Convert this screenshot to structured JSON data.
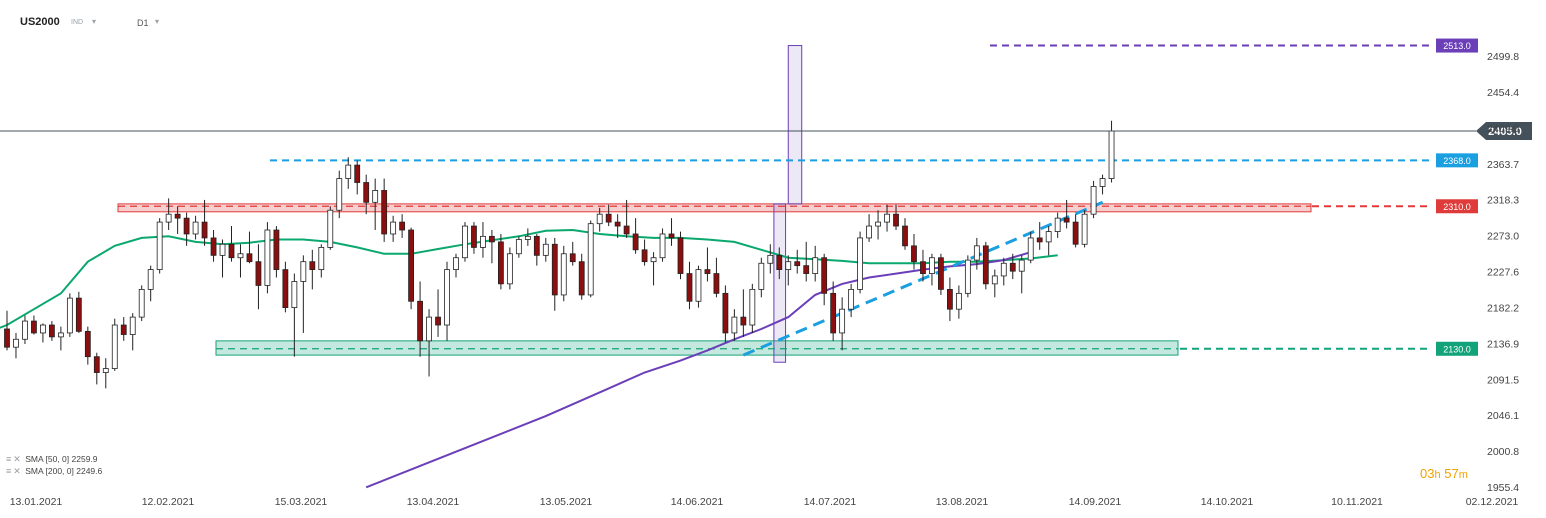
{
  "header": {
    "symbol": "US2000",
    "symbol_tag": "IND",
    "timeframe": "D1",
    "chevron": "▾"
  },
  "legend": [
    {
      "label": "SMA",
      "params": "[50, 0]",
      "value": "2259.9",
      "color": "#0aa86e"
    },
    {
      "label": "SMA",
      "params": "[200, 0]",
      "value": "2249.6",
      "color": "#6a3fb8"
    }
  ],
  "timer": {
    "hours": "03",
    "h": "h",
    "minutes": "57",
    "m": "m"
  },
  "icons": {
    "indicator": "≡",
    "remove": "✕"
  },
  "chart_data": {
    "type": "candlestick",
    "instrument": "US2000",
    "timeframe": "D1",
    "y_ticks": [
      "2499.8",
      "2454.4",
      "2409.0",
      "2363.7",
      "2318.3",
      "2273.0",
      "2227.6",
      "2182.2",
      "2136.9",
      "2091.5",
      "2046.1",
      "2000.8",
      "1955.4"
    ],
    "y_range": [
      1955.4,
      2533
    ],
    "x_labels": [
      "13.01.2021",
      "12.02.2021",
      "15.03.2021",
      "13.04.2021",
      "13.05.2021",
      "14.06.2021",
      "14.07.2021",
      "13.08.2021",
      "14.09.2021",
      "14.10.2021",
      "10.11.2021",
      "02.12.2021"
    ],
    "current_price": {
      "label": "2405.0",
      "value": 2405.0,
      "color": "#44505a"
    },
    "levels": [
      {
        "label": "2513.0",
        "value": 2513.0,
        "color": "#6a3fb8",
        "style": "dashed"
      },
      {
        "label": "2368.0",
        "value": 2368.0,
        "color": "#1a9fe0",
        "style": "dashed"
      },
      {
        "label": "2310.0",
        "value": 2310.0,
        "color": "#e03b3b",
        "style": "dashed"
      },
      {
        "label": "2130.0",
        "value": 2130.0,
        "color": "#13a37a",
        "style": "dashed"
      }
    ],
    "zones": [
      {
        "name": "resistance-zone",
        "low": 2303,
        "high": 2313,
        "color": "#e03b3b"
      },
      {
        "name": "support-zone",
        "low": 2122,
        "high": 2140,
        "color": "#13a37a"
      }
    ],
    "series": [
      {
        "name": "SMA [50, 0]",
        "color": "#0aa86e",
        "points": [
          [
            -24,
            2030
          ],
          [
            -16,
            2075
          ],
          [
            -8,
            2125
          ],
          [
            0,
            2160
          ],
          [
            3,
            2180
          ],
          [
            6,
            2200
          ],
          [
            9,
            2240
          ],
          [
            12,
            2260
          ],
          [
            15,
            2270
          ],
          [
            18,
            2272
          ],
          [
            21,
            2265
          ],
          [
            24,
            2262
          ],
          [
            27,
            2264
          ],
          [
            30,
            2268
          ],
          [
            33,
            2268
          ],
          [
            36,
            2265
          ],
          [
            39,
            2258
          ],
          [
            42,
            2250
          ],
          [
            45,
            2250
          ],
          [
            48,
            2256
          ],
          [
            51,
            2262
          ],
          [
            54,
            2267
          ],
          [
            57,
            2272
          ],
          [
            60,
            2279
          ],
          [
            63,
            2280
          ],
          [
            66,
            2275
          ],
          [
            69,
            2272
          ],
          [
            72,
            2270
          ],
          [
            75,
            2270
          ],
          [
            78,
            2268
          ],
          [
            81,
            2265
          ],
          [
            84,
            2255
          ],
          [
            87,
            2245
          ],
          [
            90,
            2243
          ],
          [
            93,
            2241
          ],
          [
            96,
            2238
          ],
          [
            99,
            2238
          ],
          [
            102,
            2238
          ],
          [
            105,
            2240
          ],
          [
            108,
            2240
          ],
          [
            111,
            2242
          ],
          [
            114,
            2244
          ],
          [
            117,
            2248
          ]
        ]
      },
      {
        "name": "SMA [200, 0]",
        "color": "#6a3fb8",
        "points": [
          [
            40,
            1955
          ],
          [
            50,
            2000
          ],
          [
            60,
            2045
          ],
          [
            67,
            2080
          ],
          [
            71,
            2100
          ],
          [
            75,
            2115
          ],
          [
            78,
            2128
          ],
          [
            81,
            2142
          ],
          [
            84,
            2155
          ],
          [
            87,
            2170
          ],
          [
            90,
            2198
          ],
          [
            93,
            2212
          ],
          [
            96,
            2220
          ],
          [
            99,
            2225
          ],
          [
            102,
            2230
          ],
          [
            105,
            2234
          ],
          [
            108,
            2237
          ],
          [
            111,
            2242
          ],
          [
            114,
            2252
          ]
        ]
      }
    ],
    "trendline": {
      "color": "#1a9fe0",
      "points": [
        [
          82,
          2122
        ],
        [
          117,
          2293
        ]
      ]
    },
    "annotations": [
      {
        "name": "projection-box-upper",
        "x_from": 87,
        "x_to": 88.5,
        "low": 2313,
        "high": 2513,
        "color": "#6a3fb8"
      },
      {
        "name": "projection-box-lower",
        "x_from": 85.4,
        "x_to": 86.7,
        "low": 2113,
        "high": 2313,
        "color": "#6a3fb8"
      }
    ],
    "candles": [
      [
        2155,
        2178,
        2128,
        2132
      ],
      [
        2132,
        2150,
        2118,
        2142
      ],
      [
        2142,
        2172,
        2136,
        2165
      ],
      [
        2165,
        2172,
        2148,
        2150
      ],
      [
        2150,
        2162,
        2138,
        2160
      ],
      [
        2160,
        2165,
        2140,
        2145
      ],
      [
        2145,
        2158,
        2128,
        2150
      ],
      [
        2150,
        2200,
        2145,
        2194
      ],
      [
        2194,
        2202,
        2150,
        2152
      ],
      [
        2152,
        2158,
        2110,
        2120
      ],
      [
        2120,
        2125,
        2085,
        2100
      ],
      [
        2100,
        2118,
        2080,
        2105
      ],
      [
        2105,
        2168,
        2102,
        2160
      ],
      [
        2160,
        2170,
        2140,
        2148
      ],
      [
        2148,
        2175,
        2128,
        2170
      ],
      [
        2170,
        2210,
        2165,
        2205
      ],
      [
        2205,
        2235,
        2190,
        2230
      ],
      [
        2230,
        2295,
        2225,
        2290
      ],
      [
        2290,
        2320,
        2280,
        2300
      ],
      [
        2300,
        2310,
        2275,
        2295
      ],
      [
        2295,
        2302,
        2260,
        2275
      ],
      [
        2275,
        2298,
        2268,
        2290
      ],
      [
        2290,
        2318,
        2260,
        2270
      ],
      [
        2270,
        2280,
        2240,
        2248
      ],
      [
        2248,
        2268,
        2220,
        2262
      ],
      [
        2262,
        2285,
        2240,
        2245
      ],
      [
        2245,
        2262,
        2220,
        2250
      ],
      [
        2250,
        2278,
        2238,
        2240
      ],
      [
        2240,
        2262,
        2180,
        2210
      ],
      [
        2210,
        2290,
        2200,
        2280
      ],
      [
        2280,
        2285,
        2220,
        2230
      ],
      [
        2230,
        2240,
        2176,
        2182
      ],
      [
        2182,
        2225,
        2120,
        2215
      ],
      [
        2215,
        2248,
        2150,
        2240
      ],
      [
        2240,
        2255,
        2205,
        2230
      ],
      [
        2230,
        2262,
        2220,
        2258
      ],
      [
        2258,
        2310,
        2255,
        2305
      ],
      [
        2305,
        2355,
        2295,
        2345
      ],
      [
        2345,
        2372,
        2332,
        2362
      ],
      [
        2362,
        2368,
        2325,
        2340
      ],
      [
        2340,
        2350,
        2300,
        2315
      ],
      [
        2315,
        2345,
        2280,
        2330
      ],
      [
        2330,
        2345,
        2265,
        2275
      ],
      [
        2275,
        2298,
        2265,
        2290
      ],
      [
        2290,
        2300,
        2270,
        2280
      ],
      [
        2280,
        2283,
        2180,
        2190
      ],
      [
        2190,
        2215,
        2120,
        2140
      ],
      [
        2140,
        2180,
        2095,
        2170
      ],
      [
        2170,
        2205,
        2145,
        2160
      ],
      [
        2160,
        2240,
        2140,
        2230
      ],
      [
        2230,
        2250,
        2220,
        2245
      ],
      [
        2245,
        2290,
        2240,
        2285
      ],
      [
        2285,
        2290,
        2250,
        2258
      ],
      [
        2258,
        2290,
        2245,
        2272
      ],
      [
        2272,
        2280,
        2238,
        2265
      ],
      [
        2265,
        2275,
        2205,
        2212
      ],
      [
        2212,
        2258,
        2205,
        2250
      ],
      [
        2250,
        2272,
        2245,
        2268
      ],
      [
        2268,
        2282,
        2260,
        2272
      ],
      [
        2272,
        2275,
        2235,
        2248
      ],
      [
        2248,
        2270,
        2240,
        2262
      ],
      [
        2262,
        2270,
        2178,
        2198
      ],
      [
        2198,
        2260,
        2190,
        2250
      ],
      [
        2250,
        2265,
        2235,
        2240
      ],
      [
        2240,
        2250,
        2192,
        2198
      ],
      [
        2198,
        2292,
        2195,
        2288
      ],
      [
        2288,
        2308,
        2278,
        2300
      ],
      [
        2300,
        2312,
        2285,
        2290
      ],
      [
        2290,
        2300,
        2270,
        2285
      ],
      [
        2285,
        2318,
        2270,
        2275
      ],
      [
        2275,
        2295,
        2250,
        2255
      ],
      [
        2255,
        2268,
        2235,
        2240
      ],
      [
        2240,
        2252,
        2210,
        2245
      ],
      [
        2245,
        2282,
        2240,
        2275
      ],
      [
        2275,
        2295,
        2260,
        2270
      ],
      [
        2270,
        2278,
        2218,
        2225
      ],
      [
        2225,
        2240,
        2180,
        2190
      ],
      [
        2190,
        2235,
        2182,
        2230
      ],
      [
        2230,
        2258,
        2215,
        2225
      ],
      [
        2225,
        2245,
        2195,
        2200
      ],
      [
        2200,
        2210,
        2138,
        2150
      ],
      [
        2150,
        2180,
        2140,
        2170
      ],
      [
        2170,
        2205,
        2145,
        2160
      ],
      [
        2160,
        2212,
        2150,
        2205
      ],
      [
        2205,
        2245,
        2195,
        2238
      ],
      [
        2238,
        2262,
        2225,
        2248
      ],
      [
        2248,
        2258,
        2218,
        2230
      ],
      [
        2230,
        2248,
        2210,
        2240
      ],
      [
        2240,
        2255,
        2225,
        2235
      ],
      [
        2235,
        2265,
        2215,
        2225
      ],
      [
        2225,
        2260,
        2215,
        2245
      ],
      [
        2245,
        2250,
        2185,
        2200
      ],
      [
        2200,
        2215,
        2140,
        2150
      ],
      [
        2150,
        2195,
        2128,
        2180
      ],
      [
        2180,
        2212,
        2170,
        2205
      ],
      [
        2205,
        2278,
        2200,
        2270
      ],
      [
        2270,
        2300,
        2265,
        2285
      ],
      [
        2285,
        2305,
        2268,
        2290
      ],
      [
        2290,
        2312,
        2278,
        2300
      ],
      [
        2300,
        2312,
        2280,
        2285
      ],
      [
        2285,
        2295,
        2255,
        2260
      ],
      [
        2260,
        2275,
        2230,
        2240
      ],
      [
        2240,
        2255,
        2215,
        2225
      ],
      [
        2225,
        2250,
        2210,
        2245
      ],
      [
        2245,
        2250,
        2198,
        2205
      ],
      [
        2205,
        2220,
        2165,
        2180
      ],
      [
        2180,
        2210,
        2168,
        2200
      ],
      [
        2200,
        2248,
        2195,
        2242
      ],
      [
        2242,
        2270,
        2230,
        2260
      ],
      [
        2260,
        2265,
        2205,
        2212
      ],
      [
        2212,
        2230,
        2195,
        2222
      ],
      [
        2222,
        2245,
        2210,
        2238
      ],
      [
        2238,
        2250,
        2218,
        2228
      ],
      [
        2228,
        2248,
        2200,
        2242
      ],
      [
        2242,
        2278,
        2238,
        2270
      ],
      [
        2270,
        2290,
        2255,
        2265
      ],
      [
        2265,
        2285,
        2248,
        2278
      ],
      [
        2278,
        2302,
        2270,
        2295
      ],
      [
        2295,
        2318,
        2282,
        2290
      ],
      [
        2290,
        2300,
        2258,
        2262
      ],
      [
        2262,
        2305,
        2258,
        2300
      ],
      [
        2300,
        2342,
        2295,
        2335
      ],
      [
        2335,
        2350,
        2325,
        2345
      ],
      [
        2345,
        2418,
        2340,
        2405
      ]
    ]
  }
}
